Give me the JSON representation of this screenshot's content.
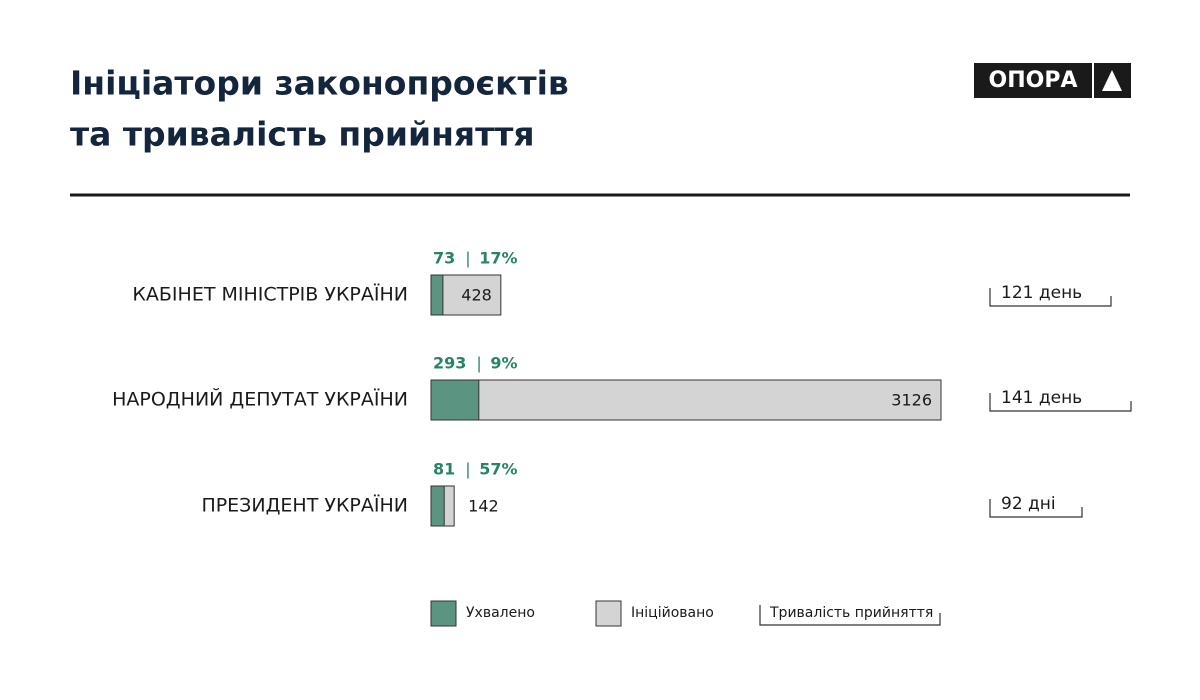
{
  "chart_data": {
    "type": "bar",
    "title_lines": [
      "Ініціатори законопроєктів",
      "та тривалість прийняття"
    ],
    "logo": "ОПОРА",
    "categories": [
      "КАБІНЕТ МІНІСТРІВ УКРАЇНИ",
      "НАРОДНИЙ ДЕПУТАТ УКРАЇНИ",
      "ПРЕЗИДЕНТ УКРАЇНИ"
    ],
    "series": [
      {
        "name": "Ухвалено",
        "color": "#5b9582",
        "label_color": "#2a8463",
        "values": [
          73,
          293,
          81
        ]
      },
      {
        "name": "Ініційовано",
        "color": "#d4d4d4",
        "values": [
          428,
          3126,
          142
        ]
      }
    ],
    "shares": [
      17,
      9,
      57
    ],
    "share_labels": [
      "17%",
      "9%",
      "57%"
    ],
    "label_separator": "|",
    "duration_name": "Тривалість прийняття",
    "durations": [
      121,
      141,
      92
    ],
    "duration_labels": [
      "121 день",
      "141 день",
      "92 дні"
    ]
  }
}
